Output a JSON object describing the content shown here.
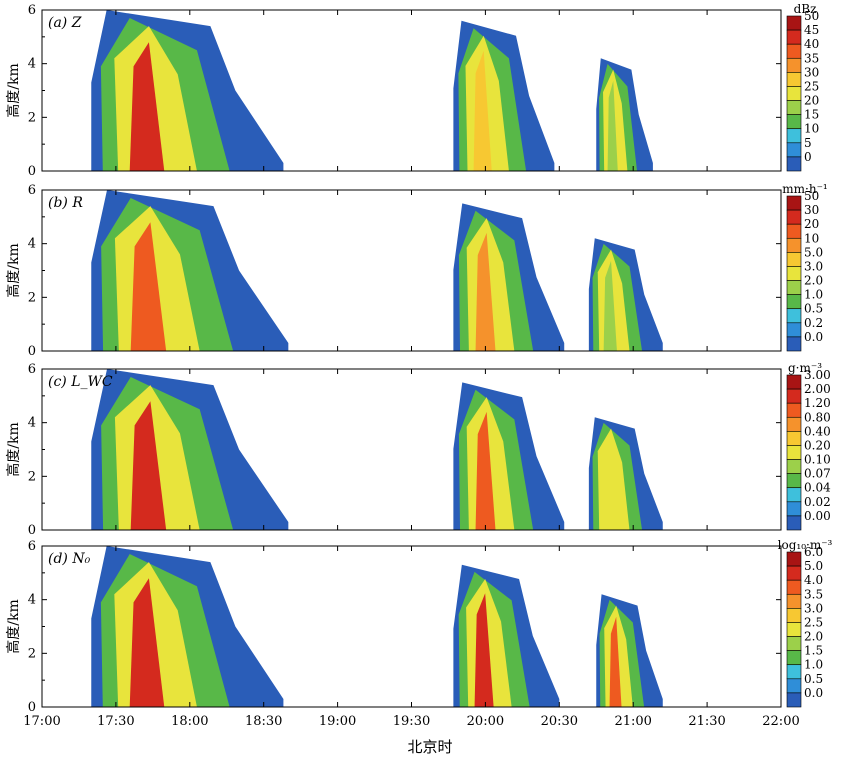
{
  "chart_data": {
    "type": "heatmap",
    "xlabel": "北京时",
    "x_ticks": [
      "17:00",
      "17:30",
      "18:00",
      "18:30",
      "19:00",
      "19:30",
      "20:00",
      "20:30",
      "21:00",
      "21:30",
      "22:00"
    ],
    "xlim": [
      "17:00",
      "22:00"
    ],
    "panels": [
      {
        "label": "(a) Z",
        "ylabel": "高度/km",
        "ylim": [
          0,
          6
        ],
        "y_ticks": [
          "0",
          "2",
          "4",
          "6"
        ],
        "colorbar_unit": "dBz",
        "colorbar_levels": [
          "50",
          "45",
          "40",
          "35",
          "30",
          "25",
          "20",
          "15",
          "10",
          "5",
          "0"
        ],
        "colorbar_colors": [
          "#a81414",
          "#d42a1e",
          "#ee5a20",
          "#f5922c",
          "#f7c832",
          "#e8e43c",
          "#9cd04a",
          "#58b848",
          "#3ec0dc",
          "#2f8ed8",
          "#2a5db8"
        ],
        "echo_cells": [
          {
            "start": "17:20",
            "end": "18:38",
            "max_height_km": 6.0,
            "level": "45"
          },
          {
            "start": "19:47",
            "end": "20:28",
            "max_height_km": 5.6,
            "level": "30"
          },
          {
            "start": "20:45",
            "end": "21:08",
            "max_height_km": 4.2,
            "level": "20"
          }
        ]
      },
      {
        "label": "(b) R",
        "ylabel": "高度/km",
        "ylim": [
          0,
          6
        ],
        "y_ticks": [
          "0",
          "2",
          "4",
          "6"
        ],
        "colorbar_unit": "mm·h⁻¹",
        "colorbar_levels": [
          "50",
          "30",
          "20",
          "10",
          "5.0",
          "3.0",
          "2.0",
          "1.0",
          "0.5",
          "0.2",
          "0.0"
        ],
        "colorbar_colors": [
          "#a81414",
          "#d42a1e",
          "#ee5a20",
          "#f5922c",
          "#f7c832",
          "#e8e43c",
          "#9cd04a",
          "#58b848",
          "#3ec0dc",
          "#2f8ed8",
          "#2a5db8"
        ],
        "echo_cells": [
          {
            "start": "17:20",
            "end": "18:40",
            "max_height_km": 6.0,
            "level": "20"
          },
          {
            "start": "19:47",
            "end": "20:32",
            "max_height_km": 5.5,
            "level": "10"
          },
          {
            "start": "20:42",
            "end": "21:12",
            "max_height_km": 4.2,
            "level": "2.0"
          }
        ]
      },
      {
        "label": "(c) L_WC",
        "ylabel": "高度/km",
        "ylim": [
          0,
          6
        ],
        "y_ticks": [
          "0",
          "2",
          "4",
          "6"
        ],
        "colorbar_unit": "g·m⁻³",
        "colorbar_levels": [
          "3.00",
          "2.00",
          "1.20",
          "0.80",
          "0.40",
          "0.20",
          "0.10",
          "0.07",
          "0.04",
          "0.02",
          "0.00"
        ],
        "colorbar_colors": [
          "#a81414",
          "#d42a1e",
          "#ee5a20",
          "#f5922c",
          "#f7c832",
          "#e8e43c",
          "#9cd04a",
          "#58b848",
          "#3ec0dc",
          "#2f8ed8",
          "#2a5db8"
        ],
        "echo_cells": [
          {
            "start": "17:20",
            "end": "18:40",
            "max_height_km": 6.0,
            "level": "2.00"
          },
          {
            "start": "19:47",
            "end": "20:32",
            "max_height_km": 5.5,
            "level": "1.20"
          },
          {
            "start": "20:42",
            "end": "21:12",
            "max_height_km": 4.2,
            "level": "0.20"
          }
        ]
      },
      {
        "label": "(d) N₀",
        "ylabel": "高度/km",
        "ylim": [
          0,
          6
        ],
        "y_ticks": [
          "0",
          "2",
          "4",
          "6"
        ],
        "colorbar_unit": "log₁₀·m⁻³",
        "colorbar_levels": [
          "6.0",
          "5.0",
          "4.0",
          "3.5",
          "3.0",
          "2.5",
          "2.0",
          "1.5",
          "1.0",
          "0.5",
          "0.0"
        ],
        "colorbar_colors": [
          "#a81414",
          "#d42a1e",
          "#ee5a20",
          "#f5922c",
          "#f7c832",
          "#e8e43c",
          "#9cd04a",
          "#58b848",
          "#3ec0dc",
          "#2f8ed8",
          "#2a5db8"
        ],
        "echo_cells": [
          {
            "start": "17:20",
            "end": "18:38",
            "max_height_km": 6.0,
            "level": "5.0"
          },
          {
            "start": "19:47",
            "end": "20:30",
            "max_height_km": 5.3,
            "level": "5.0"
          },
          {
            "start": "20:45",
            "end": "21:12",
            "max_height_km": 4.2,
            "level": "4.0"
          }
        ]
      }
    ]
  }
}
